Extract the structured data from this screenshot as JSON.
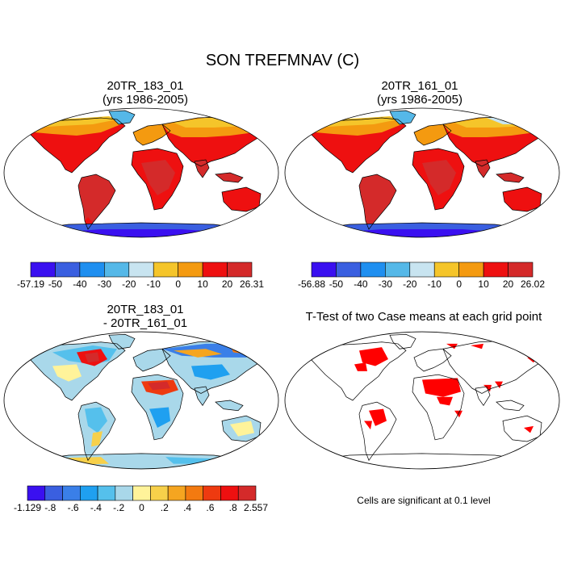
{
  "figure": {
    "title": "SON TREFMNAV (C)"
  },
  "panels": {
    "top_left": {
      "title_line1": "20TR_183_01",
      "title_line2": "(yrs 1986-2005)",
      "map": "mean field case 1"
    },
    "top_right": {
      "title_line1": "20TR_161_01",
      "title_line2": "(yrs 1986-2005)",
      "map": "mean field case 2"
    },
    "bottom_left": {
      "title_line1": "20TR_183_01",
      "title_line2": "- 20TR_161_01",
      "map": "difference field"
    },
    "bottom_right": {
      "title_line1": "T-Test of two Case means at each grid point",
      "map": "significance mask",
      "note": "Cells are significant at 0.1 level"
    }
  },
  "colorbars": {
    "top_left": {
      "labels": [
        "-57.19",
        "-50",
        "-40",
        "-30",
        "-20",
        "-10",
        "0",
        "10",
        "20",
        "26.31"
      ],
      "colors": [
        "#3a10f0",
        "#3a5fe0",
        "#1f8ff0",
        "#55b8e8",
        "#c8e4f0",
        "#f5c52a",
        "#f49a10",
        "#ee1010",
        "#d42a2a"
      ]
    },
    "top_right": {
      "labels": [
        "-56.88",
        "-50",
        "-40",
        "-30",
        "-20",
        "-10",
        "0",
        "10",
        "20",
        "26.02"
      ],
      "colors": [
        "#3a10f0",
        "#3a5fe0",
        "#1f8ff0",
        "#55b8e8",
        "#c8e4f0",
        "#f5c52a",
        "#f49a10",
        "#ee1010",
        "#d42a2a"
      ]
    },
    "bottom_left": {
      "labels": [
        "-1.129",
        "-.8",
        "-.6",
        "-.4",
        "-.2",
        "0",
        ".2",
        ".4",
        ".6",
        ".8",
        "2.557"
      ],
      "colors": [
        "#3a10f0",
        "#3a5fe0",
        "#3a7fe8",
        "#1fa0f0",
        "#55c0ec",
        "#a9d8ea",
        "#fff39a",
        "#f7d04a",
        "#f5a520",
        "#f37a10",
        "#ee3a10",
        "#ee1010",
        "#d42a2a"
      ]
    }
  },
  "colors": {
    "ocean": "#ffffff",
    "coast": "#000000",
    "significant": "#ff0000"
  }
}
